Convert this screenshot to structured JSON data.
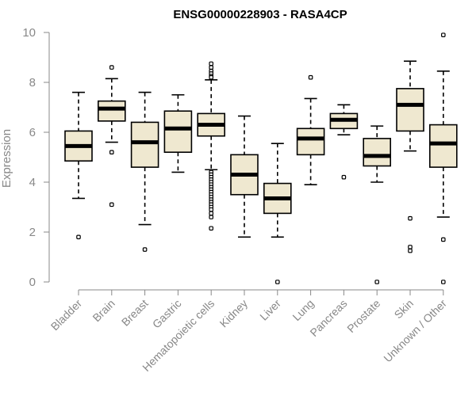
{
  "chart_data": {
    "type": "boxplot",
    "title": "ENSG00000228903 - RASA4CP",
    "xlabel": "",
    "ylabel": "Expression",
    "ylim": [
      0,
      10
    ],
    "yticks": [
      0,
      2,
      4,
      6,
      8,
      10
    ],
    "colors": {
      "box_fill": "#efe8d0",
      "stroke": "#000000",
      "axis": "#888888"
    },
    "categories": [
      "Bladder",
      "Brain",
      "Breast",
      "Gastric",
      "Hematopoietic cells",
      "Kidney",
      "Liver",
      "Lung",
      "Pancreas",
      "Prostate",
      "Skin",
      "Unknown / Other"
    ],
    "boxes": [
      {
        "name": "Bladder",
        "low": 3.35,
        "q1": 4.85,
        "median": 5.45,
        "q3": 6.05,
        "high": 7.6,
        "outliers": [
          1.8
        ]
      },
      {
        "name": "Brain",
        "low": 5.6,
        "q1": 6.45,
        "median": 6.95,
        "q3": 7.25,
        "high": 8.15,
        "outliers": [
          8.6,
          5.2,
          3.1
        ]
      },
      {
        "name": "Breast",
        "low": 2.3,
        "q1": 4.6,
        "median": 5.6,
        "q3": 6.4,
        "high": 7.6,
        "outliers": [
          1.3
        ]
      },
      {
        "name": "Gastric",
        "low": 4.4,
        "q1": 5.2,
        "median": 6.15,
        "q3": 6.85,
        "high": 7.5,
        "outliers": []
      },
      {
        "name": "Hematopoietic cells",
        "low": 4.5,
        "q1": 5.85,
        "median": 6.3,
        "q3": 6.75,
        "high": 8.1,
        "outliers": [
          8.75,
          8.6,
          8.45,
          8.35,
          8.25,
          8.2,
          4.4,
          4.3,
          4.2,
          4.1,
          4.0,
          3.9,
          3.8,
          3.7,
          3.6,
          3.5,
          3.4,
          3.3,
          3.2,
          3.1,
          3.0,
          2.9,
          2.75,
          2.6,
          2.15
        ]
      },
      {
        "name": "Kidney",
        "low": 1.8,
        "q1": 3.5,
        "median": 4.3,
        "q3": 5.1,
        "high": 6.65,
        "outliers": []
      },
      {
        "name": "Liver",
        "low": 1.8,
        "q1": 2.75,
        "median": 3.35,
        "q3": 3.95,
        "high": 5.55,
        "outliers": [
          0.0
        ]
      },
      {
        "name": "Lung",
        "low": 3.9,
        "q1": 5.1,
        "median": 5.75,
        "q3": 6.15,
        "high": 7.35,
        "outliers": [
          8.2
        ]
      },
      {
        "name": "Pancreas",
        "low": 5.9,
        "q1": 6.15,
        "median": 6.5,
        "q3": 6.75,
        "high": 7.1,
        "outliers": [
          4.2
        ]
      },
      {
        "name": "Prostate",
        "low": 4.0,
        "q1": 4.65,
        "median": 5.05,
        "q3": 5.75,
        "high": 6.25,
        "outliers": [
          0.0
        ]
      },
      {
        "name": "Skin",
        "low": 5.25,
        "q1": 6.05,
        "median": 7.1,
        "q3": 7.75,
        "high": 8.85,
        "outliers": [
          2.55,
          1.4,
          1.25
        ]
      },
      {
        "name": "Unknown / Other",
        "low": 2.6,
        "q1": 4.6,
        "median": 5.55,
        "q3": 6.3,
        "high": 8.45,
        "outliers": [
          9.9,
          1.7,
          0.0
        ]
      }
    ]
  }
}
